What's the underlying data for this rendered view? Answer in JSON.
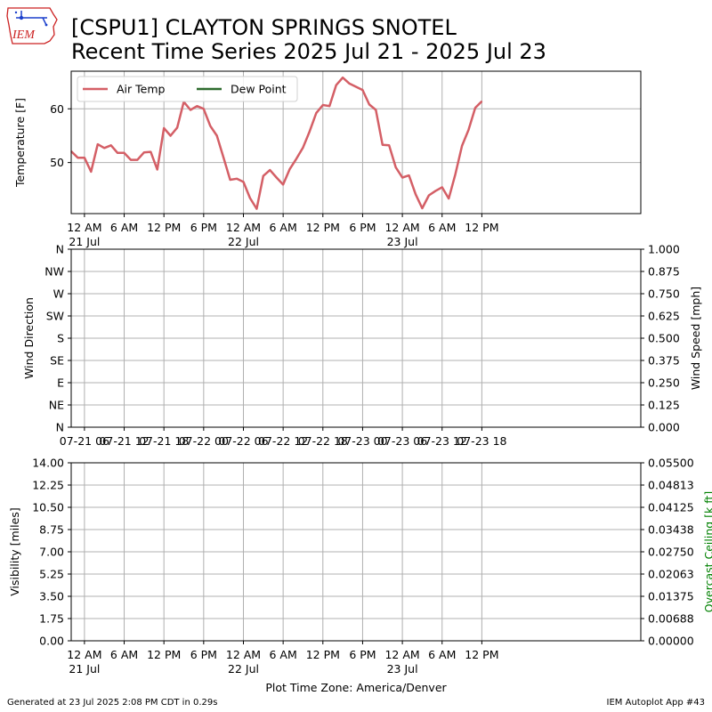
{
  "header": {
    "title_line1": "[CSPU1] CLAYTON SPRINGS SNOTEL",
    "title_line2": "Recent Time Series 2025 Jul 21 - 2025 Jul 23",
    "logo_text": "IEM"
  },
  "footer": {
    "generated": "Generated at 23 Jul 2025 2:08 PM CDT in 0.29s",
    "app": "IEM Autoplot App #43"
  },
  "colors": {
    "air_temp": "#d45f66",
    "dew_point": "#2e6b2e",
    "grid": "#b0b0b0",
    "ceiling_label": "#008000",
    "logo_red": "#cc2222",
    "logo_blue": "#1a3fcc"
  },
  "chart_data": [
    {
      "type": "line",
      "name": "temperature",
      "ylabel": "Temperature [F]",
      "legend": {
        "placement": "upper-left",
        "entries": [
          "Air Temp",
          "Dew Point"
        ]
      },
      "ylim": [
        40.5,
        67
      ],
      "yticks": [
        50,
        60
      ],
      "xlim_hours": [
        -2,
        84
      ],
      "xticks": [
        {
          "h": 0,
          "l1": "12 AM",
          "l2": "21 Jul"
        },
        {
          "h": 6,
          "l1": "6 AM",
          "l2": ""
        },
        {
          "h": 12,
          "l1": "12 PM",
          "l2": ""
        },
        {
          "h": 18,
          "l1": "6 PM",
          "l2": ""
        },
        {
          "h": 24,
          "l1": "12 AM",
          "l2": "22 Jul"
        },
        {
          "h": 30,
          "l1": "6 AM",
          "l2": ""
        },
        {
          "h": 36,
          "l1": "12 PM",
          "l2": ""
        },
        {
          "h": 42,
          "l1": "6 PM",
          "l2": ""
        },
        {
          "h": 48,
          "l1": "12 AM",
          "l2": "23 Jul"
        },
        {
          "h": 54,
          "l1": "6 AM",
          "l2": ""
        },
        {
          "h": 60,
          "l1": "12 PM",
          "l2": ""
        }
      ],
      "grid": true,
      "series": [
        {
          "name": "Air Temp",
          "x": [
            "2025-07-20 22:00",
            "2025-07-20 23:00",
            "2025-07-21 00:00",
            "2025-07-21 01:00",
            "2025-07-21 02:00",
            "2025-07-21 03:00",
            "2025-07-21 04:00",
            "2025-07-21 05:00",
            "2025-07-21 06:00",
            "2025-07-21 07:00",
            "2025-07-21 08:00",
            "2025-07-21 09:00",
            "2025-07-21 10:00",
            "2025-07-21 11:00",
            "2025-07-21 12:00",
            "2025-07-21 13:00",
            "2025-07-21 14:00",
            "2025-07-21 15:00",
            "2025-07-21 16:00",
            "2025-07-21 17:00",
            "2025-07-21 18:00",
            "2025-07-21 19:00",
            "2025-07-21 20:00",
            "2025-07-21 21:00",
            "2025-07-21 22:00",
            "2025-07-21 23:00",
            "2025-07-22 00:00",
            "2025-07-22 01:00",
            "2025-07-22 02:00",
            "2025-07-22 03:00",
            "2025-07-22 04:00",
            "2025-07-22 05:00",
            "2025-07-22 06:00",
            "2025-07-22 07:00",
            "2025-07-22 08:00",
            "2025-07-22 09:00",
            "2025-07-22 10:00",
            "2025-07-22 11:00",
            "2025-07-22 12:00",
            "2025-07-22 13:00",
            "2025-07-22 14:00",
            "2025-07-22 15:00",
            "2025-07-22 16:00",
            "2025-07-22 17:00",
            "2025-07-22 18:00",
            "2025-07-22 19:00",
            "2025-07-22 20:00",
            "2025-07-22 21:00",
            "2025-07-22 22:00",
            "2025-07-22 23:00",
            "2025-07-23 00:00",
            "2025-07-23 01:00",
            "2025-07-23 02:00",
            "2025-07-23 03:00",
            "2025-07-23 04:00",
            "2025-07-23 05:00",
            "2025-07-23 06:00",
            "2025-07-23 07:00",
            "2025-07-23 08:00",
            "2025-07-23 09:00",
            "2025-07-23 10:00",
            "2025-07-23 11:00",
            "2025-07-23 12:00"
          ],
          "values": [
            52.1,
            50.9,
            50.9,
            48.3,
            53.4,
            52.7,
            53.2,
            51.8,
            51.8,
            50.5,
            50.5,
            51.9,
            52.0,
            48.7,
            56.4,
            55.0,
            56.5,
            61.3,
            59.8,
            60.5,
            60.0,
            56.8,
            55.0,
            50.9,
            46.8,
            47.0,
            46.4,
            43.4,
            41.4,
            47.5,
            48.6,
            47.2,
            45.9,
            48.8,
            50.7,
            52.8,
            55.8,
            59.2,
            60.7,
            60.5,
            64.4,
            65.8,
            64.7,
            64.1,
            63.5,
            60.8,
            59.8,
            53.3,
            53.2,
            49.1,
            47.2,
            47.6,
            44.1,
            41.5,
            43.9,
            44.7,
            45.4,
            43.3,
            47.8,
            53.1,
            56.1,
            60.2,
            61.4
          ]
        },
        {
          "name": "Dew Point",
          "x": [],
          "values": []
        }
      ]
    },
    {
      "type": "line",
      "name": "wind",
      "ylabel": "Wind Direction",
      "y2label": "Wind Speed [mph]",
      "yticks": [
        "N",
        "NE",
        "E",
        "SE",
        "S",
        "SW",
        "W",
        "NW",
        "N"
      ],
      "y2lim": [
        0,
        1
      ],
      "y2ticks": [
        "0.000",
        "0.125",
        "0.250",
        "0.375",
        "0.500",
        "0.625",
        "0.750",
        "0.875",
        "1.000"
      ],
      "xticks": [
        {
          "h": 0,
          "label": "07-21 06"
        },
        {
          "h": 6,
          "label": "07-21 12"
        },
        {
          "h": 12,
          "label": "07-21 18"
        },
        {
          "h": 18,
          "label": "07-22 00"
        },
        {
          "h": 24,
          "label": "07-22 06"
        },
        {
          "h": 30,
          "label": "07-22 12"
        },
        {
          "h": 36,
          "label": "07-22 18"
        },
        {
          "h": 42,
          "label": "07-23 00"
        },
        {
          "h": 48,
          "label": "07-23 06"
        },
        {
          "h": 54,
          "label": "07-23 12"
        },
        {
          "h": 60,
          "label": "07-23 18"
        }
      ],
      "grid": true,
      "series": []
    },
    {
      "type": "line",
      "name": "visibility",
      "ylabel": "Visibility [miles]",
      "y2label": "Overcast Ceiling [k ft]",
      "ylim": [
        0,
        14
      ],
      "yticks": [
        "0.00",
        "1.75",
        "3.50",
        "5.25",
        "7.00",
        "8.75",
        "10.50",
        "12.25",
        "14.00"
      ],
      "y2lim": [
        0,
        0.055
      ],
      "y2ticks": [
        "0.00000",
        "0.00688",
        "0.01375",
        "0.02063",
        "0.02750",
        "0.03438",
        "0.04125",
        "0.04813",
        "0.05500"
      ],
      "xlabel": "Plot Time Zone: America/Denver",
      "xticks": [
        {
          "h": 0,
          "l1": "12 AM",
          "l2": "21 Jul"
        },
        {
          "h": 6,
          "l1": "6 AM",
          "l2": ""
        },
        {
          "h": 12,
          "l1": "12 PM",
          "l2": ""
        },
        {
          "h": 18,
          "l1": "6 PM",
          "l2": ""
        },
        {
          "h": 24,
          "l1": "12 AM",
          "l2": "22 Jul"
        },
        {
          "h": 30,
          "l1": "6 AM",
          "l2": ""
        },
        {
          "h": 36,
          "l1": "12 PM",
          "l2": ""
        },
        {
          "h": 42,
          "l1": "6 PM",
          "l2": ""
        },
        {
          "h": 48,
          "l1": "12 AM",
          "l2": "23 Jul"
        },
        {
          "h": 54,
          "l1": "6 AM",
          "l2": ""
        },
        {
          "h": 60,
          "l1": "12 PM",
          "l2": ""
        }
      ],
      "grid": true,
      "series": []
    }
  ]
}
